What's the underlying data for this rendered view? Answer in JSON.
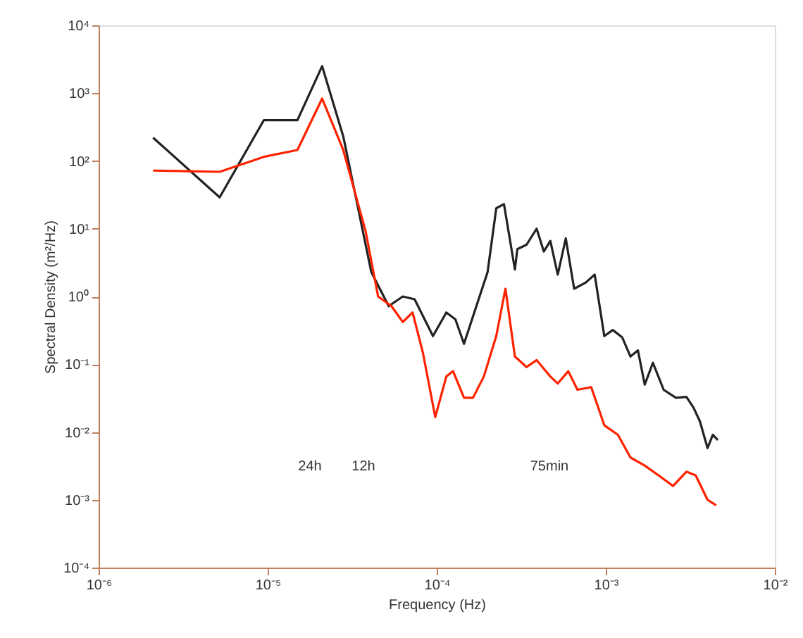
{
  "chart_data": {
    "type": "line",
    "xlabel": "Frequency (Hz)",
    "ylabel": "Spectral Density (m²/Hz)",
    "log": "xy",
    "grid": false,
    "marker": "none",
    "line_style": "solid",
    "xlim": [
      1e-06,
      0.01
    ],
    "ylim": [
      0.0001,
      10000.0
    ],
    "xticks": [
      {
        "value": 1e-06,
        "label": "10⁻⁶"
      },
      {
        "value": 1e-05,
        "label": "10⁻⁵"
      },
      {
        "value": 0.0001,
        "label": "10⁻⁴"
      },
      {
        "value": 0.001,
        "label": "10⁻³"
      },
      {
        "value": 0.01,
        "label": "10⁻²"
      }
    ],
    "yticks": [
      {
        "value": 0.0001,
        "label": "10⁻⁴"
      },
      {
        "value": 0.001,
        "label": "10⁻³"
      },
      {
        "value": 0.01,
        "label": "10⁻²"
      },
      {
        "value": 0.1,
        "label": "10⁻¹"
      },
      {
        "value": 1,
        "label": "10⁰"
      },
      {
        "value": 10,
        "label": "10¹"
      },
      {
        "value": 100,
        "label": "10²"
      },
      {
        "value": 1000,
        "label": "10³"
      },
      {
        "value": 10000,
        "label": "10⁴"
      }
    ],
    "series": [
      {
        "color": "#222222",
        "x": [
          2.1e-06,
          5.2e-06,
          9.5e-06,
          1.5e-05,
          2.1e-05,
          2.8e-05,
          4.1e-05,
          5.2e-05,
          6.3e-05,
          7.4e-05,
          9.5e-05,
          0.000114,
          0.000129,
          0.000145,
          0.0002,
          0.000225,
          0.00025,
          0.00029,
          0.0003,
          0.00034,
          0.00039,
          0.00043,
          0.00047,
          0.00052,
          0.00058,
          0.00065,
          0.00076,
          0.00086,
          0.00098,
          0.0011,
          0.00125,
          0.0014,
          0.00155,
          0.0017,
          0.0019,
          0.0022,
          0.0026,
          0.003,
          0.0033,
          0.0036,
          0.004,
          0.0043,
          0.0046
        ],
        "values": [
          220,
          29,
          400,
          400,
          2500,
          230,
          2.3,
          0.72,
          1.0,
          0.91,
          0.26,
          0.58,
          0.46,
          0.2,
          2.3,
          20,
          23,
          2.5,
          5.0,
          5.8,
          10,
          4.6,
          6.6,
          2.1,
          7.2,
          1.3,
          1.6,
          2.1,
          0.26,
          0.32,
          0.25,
          0.13,
          0.16,
          0.05,
          0.105,
          0.042,
          0.032,
          0.033,
          0.023,
          0.0145,
          0.0058,
          0.0091,
          0.0076
        ]
      },
      {
        "color": "#ff2200",
        "x": [
          2.1e-06,
          5.2e-06,
          9.5e-06,
          1.5e-05,
          2.1e-05,
          2.8e-05,
          3.8e-05,
          4.5e-05,
          5.4e-05,
          6.3e-05,
          7.2e-05,
          8.3e-05,
          9.8e-05,
          0.000114,
          0.000125,
          0.000145,
          0.000164,
          0.00019,
          0.000225,
          0.000255,
          0.00029,
          0.00034,
          0.00039,
          0.00047,
          0.00052,
          0.0006,
          0.00068,
          0.00082,
          0.00098,
          0.00118,
          0.0014,
          0.0017,
          0.00205,
          0.0025,
          0.003,
          0.0034,
          0.004,
          0.0045
        ],
        "values": [
          72,
          69,
          115,
          145,
          830,
          145,
          9.1,
          1.0,
          0.72,
          0.42,
          0.58,
          0.145,
          0.0166,
          0.066,
          0.079,
          0.032,
          0.032,
          0.066,
          0.26,
          1.3,
          0.13,
          0.091,
          0.115,
          0.066,
          0.052,
          0.079,
          0.042,
          0.046,
          0.0126,
          0.0091,
          0.0042,
          0.0032,
          0.0023,
          0.0016,
          0.0026,
          0.0023,
          0.001,
          0.00083
        ]
      }
    ],
    "annotations": [
      "24h",
      "12h",
      "75min"
    ]
  }
}
